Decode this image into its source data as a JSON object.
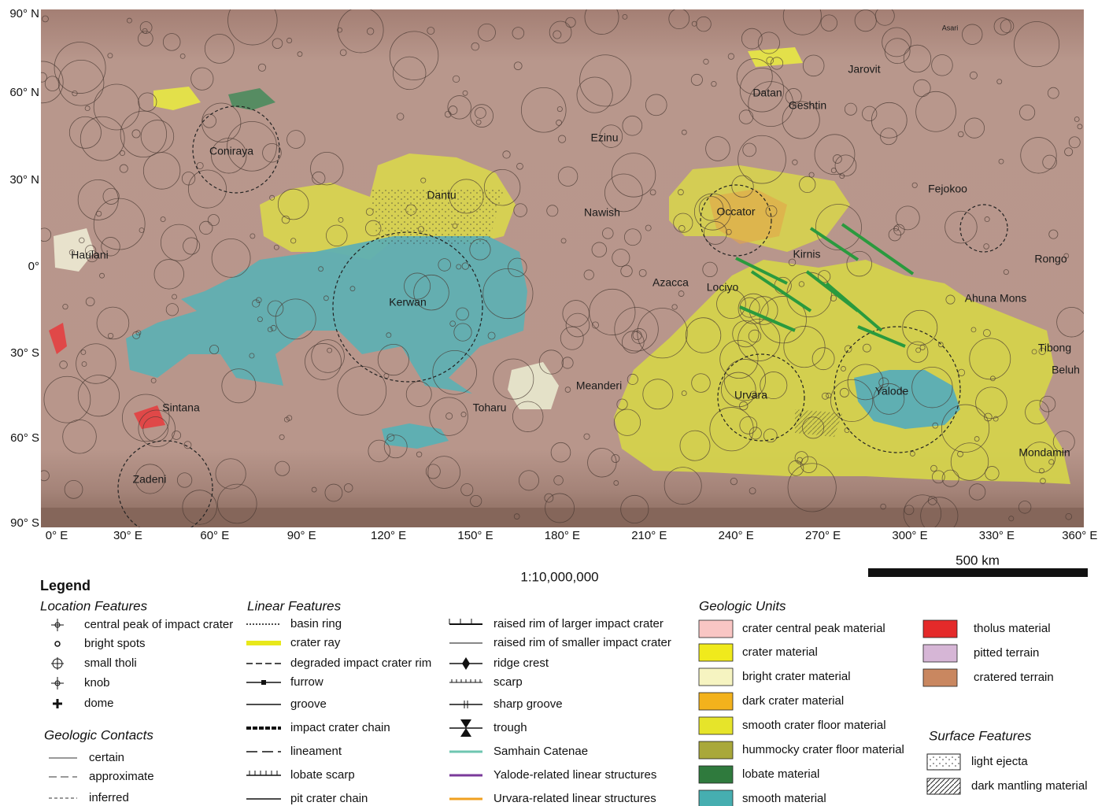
{
  "map": {
    "lat_labels": [
      "90° N",
      "60° N",
      "30° N",
      "0°",
      "30° S",
      "60° S",
      "90° S"
    ],
    "lon_labels": [
      "0° E",
      "30° E",
      "60° E",
      "90° E",
      "120° E",
      "150° E",
      "180° E",
      "210° E",
      "240° E",
      "270° E",
      "300° E",
      "330° E",
      "360° E"
    ],
    "features": [
      "Asari",
      "Jarovit",
      "Datan",
      "Geshtin",
      "Ezinu",
      "Coniraya",
      "Dantu",
      "Fejokoo",
      "Occator",
      "Nawish",
      "Haulani",
      "Kirnis",
      "Rongo",
      "Azacca",
      "Lociyo",
      "Ahuna Mons",
      "Kerwan",
      "Tibong",
      "Beluh",
      "Meanderi",
      "Urvara",
      "Yalode",
      "Sintana",
      "Toharu",
      "Mondamin",
      "Zadeni"
    ]
  },
  "scale": "1:10,000,000",
  "scale_bar": "500 km",
  "legend": {
    "title": "Legend",
    "location_features": {
      "title": "Location Features",
      "items": [
        "central peak of impact crater",
        "bright spots",
        "small tholi",
        "knob",
        "dome"
      ]
    },
    "geologic_contacts": {
      "title": "Geologic Contacts",
      "items": [
        "certain",
        "approximate",
        "inferred"
      ]
    },
    "linear_features": {
      "title": "Linear Features",
      "items": [
        "basin ring",
        "crater ray",
        "degraded impact crater rim",
        "furrow",
        "groove",
        "impact crater chain",
        "lineament",
        "lobate scarp",
        "pit crater chain",
        "raised rim of larger impact crater",
        "raised rim of smaller impact crater",
        "ridge crest",
        "scarp",
        "sharp groove",
        "trough",
        "Samhain Catenae",
        "Yalode-related linear structures",
        "Urvara-related linear structures"
      ]
    },
    "geologic_units": {
      "title": "Geologic Units",
      "items": [
        {
          "label": "crater central peak material",
          "color": "#f9c6c4"
        },
        {
          "label": "crater material",
          "color": "#f0ea1c"
        },
        {
          "label": "bright crater material",
          "color": "#f6f4c1"
        },
        {
          "label": "dark crater material",
          "color": "#f3b21c"
        },
        {
          "label": "smooth crater floor material",
          "color": "#e6e42a"
        },
        {
          "label": "hummocky crater floor material",
          "color": "#a9a83a"
        },
        {
          "label": "lobate material",
          "color": "#2f7a3d"
        },
        {
          "label": "smooth material",
          "color": "#46aeb0"
        },
        {
          "label": "tholus material",
          "color": "#e42a2a"
        },
        {
          "label": "pitted terrain",
          "color": "#d6b6d6"
        },
        {
          "label": "cratered terrain",
          "color": "#c98760"
        }
      ]
    },
    "surface_features": {
      "title": "Surface Features",
      "items": [
        "light ejecta",
        "dark mantling material"
      ]
    }
  }
}
